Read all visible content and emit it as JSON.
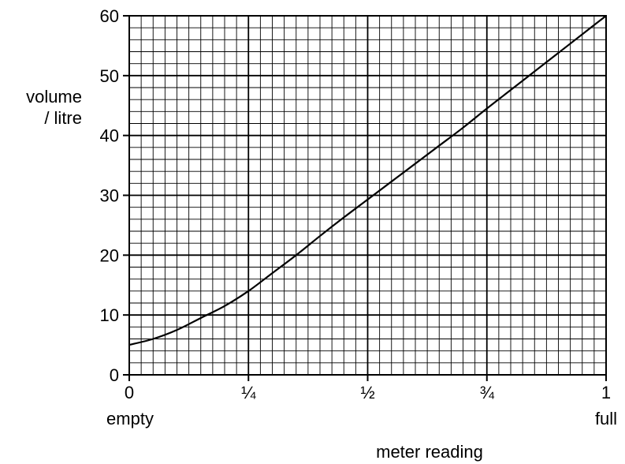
{
  "chart_data": {
    "type": "line",
    "ylabel_line1": "volume",
    "ylabel_line2": "/ litre",
    "xlabel": "meter reading",
    "x_tick_labels": [
      "0",
      "¼",
      "½",
      "¾",
      "1"
    ],
    "x_end_labels": {
      "start": "empty",
      "end": "full"
    },
    "y_tick_labels": [
      "0",
      "10",
      "20",
      "30",
      "40",
      "50",
      "60"
    ],
    "xlim": [
      0,
      1
    ],
    "ylim": [
      0,
      60
    ],
    "grid": true,
    "series": [
      {
        "x": [
          0,
          0.05,
          0.1,
          0.15,
          0.2,
          0.25,
          0.3,
          0.35,
          0.4,
          0.45,
          0.5,
          0.55,
          0.6,
          0.65,
          0.7,
          0.75,
          0.8,
          0.85,
          0.9,
          0.95,
          1.0
        ],
        "values": [
          5.0,
          6.0,
          7.5,
          9.5,
          11.5,
          14.0,
          17.0,
          20.0,
          23.2,
          26.3,
          29.3,
          32.3,
          35.3,
          38.3,
          41.3,
          44.5,
          47.6,
          50.7,
          53.8,
          56.9,
          60.0
        ]
      }
    ]
  }
}
